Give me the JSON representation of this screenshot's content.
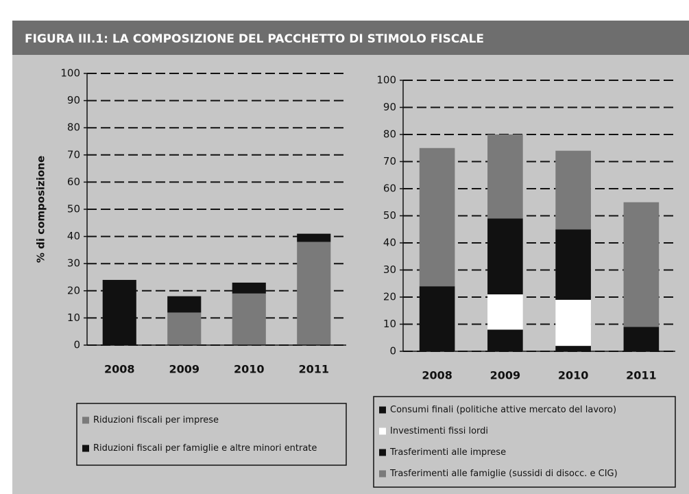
{
  "title": "FIGURA III.1: LA COMPOSIZIONE DEL PACCHETTO DI STIMOLO FISCALE",
  "chart_data": [
    {
      "type": "bar",
      "stacked": true,
      "ylabel": "% di composizione",
      "categories": [
        "2008",
        "2009",
        "2010",
        "2011"
      ],
      "ylim": [
        0,
        100
      ],
      "yticks": [
        0,
        10,
        20,
        30,
        40,
        50,
        60,
        70,
        80,
        90,
        100
      ],
      "grid": true,
      "series": [
        {
          "name": "Riduzioni fiscali per imprese",
          "color": "#7a7a7a",
          "values": [
            0,
            12,
            19,
            38
          ]
        },
        {
          "name": "Riduzioni fiscali per famiglie e altre minori entrate",
          "color": "#111111",
          "values": [
            24,
            6,
            4,
            3
          ]
        }
      ]
    },
    {
      "type": "bar",
      "stacked": true,
      "categories": [
        "2008",
        "2009",
        "2010",
        "2011"
      ],
      "ylim": [
        0,
        100
      ],
      "yticks": [
        0,
        10,
        20,
        30,
        40,
        50,
        60,
        70,
        80,
        90,
        100
      ],
      "grid": true,
      "series": [
        {
          "name": "Consumi finali (politiche attive mercato del lavoro)",
          "color": "#111111",
          "values": [
            24,
            8,
            2,
            9
          ]
        },
        {
          "name": "Investimenti fissi lordi",
          "color": "#ffffff",
          "values": [
            0,
            13,
            17,
            0
          ]
        },
        {
          "name": "Trasferimenti alle imprese",
          "color": "#111111",
          "values": [
            0,
            28,
            26,
            0
          ]
        },
        {
          "name": "Trasferimenti alle famiglie (sussidi di disocc. e CIG)",
          "color": "#7a7a7a",
          "values": [
            51,
            31,
            29,
            46
          ]
        }
      ]
    }
  ]
}
